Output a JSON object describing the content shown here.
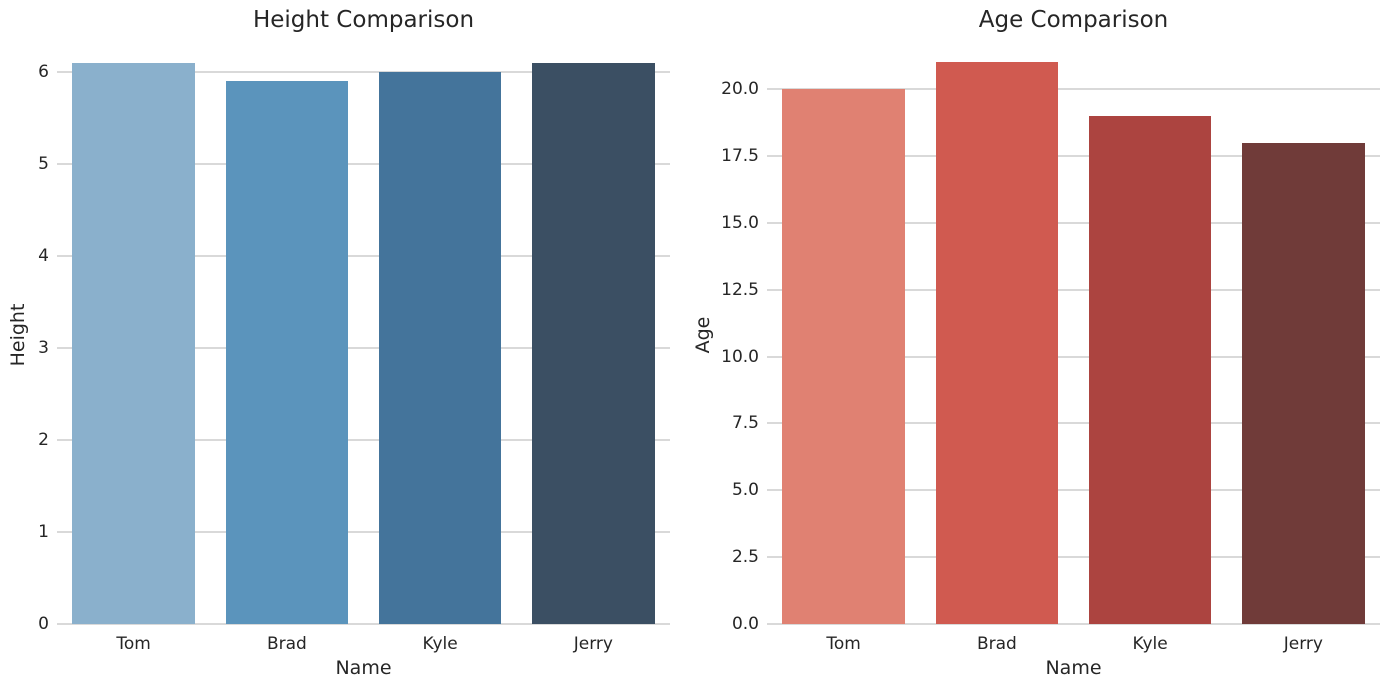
{
  "figure": {
    "background_color": "#ffffff",
    "text_color": "#262626",
    "grid_color": "#d9d9d9"
  },
  "chart_data": [
    {
      "type": "bar",
      "title": "Height Comparison",
      "xlabel": "Name",
      "ylabel": "Height",
      "categories": [
        "Tom",
        "Brad",
        "Kyle",
        "Jerry"
      ],
      "values": [
        6.1,
        5.9,
        6.0,
        6.1
      ],
      "bar_colors": [
        "#8AB0CC",
        "#5B94BC",
        "#44749B",
        "#3B4F63"
      ],
      "ylim": [
        0,
        6.29
      ],
      "yticks": [
        0,
        1,
        2,
        3,
        4,
        5,
        6
      ],
      "ytick_labels": [
        "0",
        "1",
        "2",
        "3",
        "4",
        "5",
        "6"
      ],
      "grid": true,
      "legend": null,
      "bar_width_fraction": 0.8
    },
    {
      "type": "bar",
      "title": "Age Comparison",
      "xlabel": "Name",
      "ylabel": "Age",
      "categories": [
        "Tom",
        "Brad",
        "Kyle",
        "Jerry"
      ],
      "values": [
        20,
        21,
        19,
        18
      ],
      "bar_colors": [
        "#E08172",
        "#D05A50",
        "#AC4440",
        "#703B39"
      ],
      "ylim": [
        0,
        21.65
      ],
      "yticks": [
        0,
        2.5,
        5,
        7.5,
        10,
        12.5,
        15,
        17.5,
        20
      ],
      "ytick_labels": [
        "0.0",
        "2.5",
        "5.0",
        "7.5",
        "10.0",
        "12.5",
        "15.0",
        "17.5",
        "20.0"
      ],
      "grid": true,
      "legend": null,
      "bar_width_fraction": 0.8
    }
  ]
}
